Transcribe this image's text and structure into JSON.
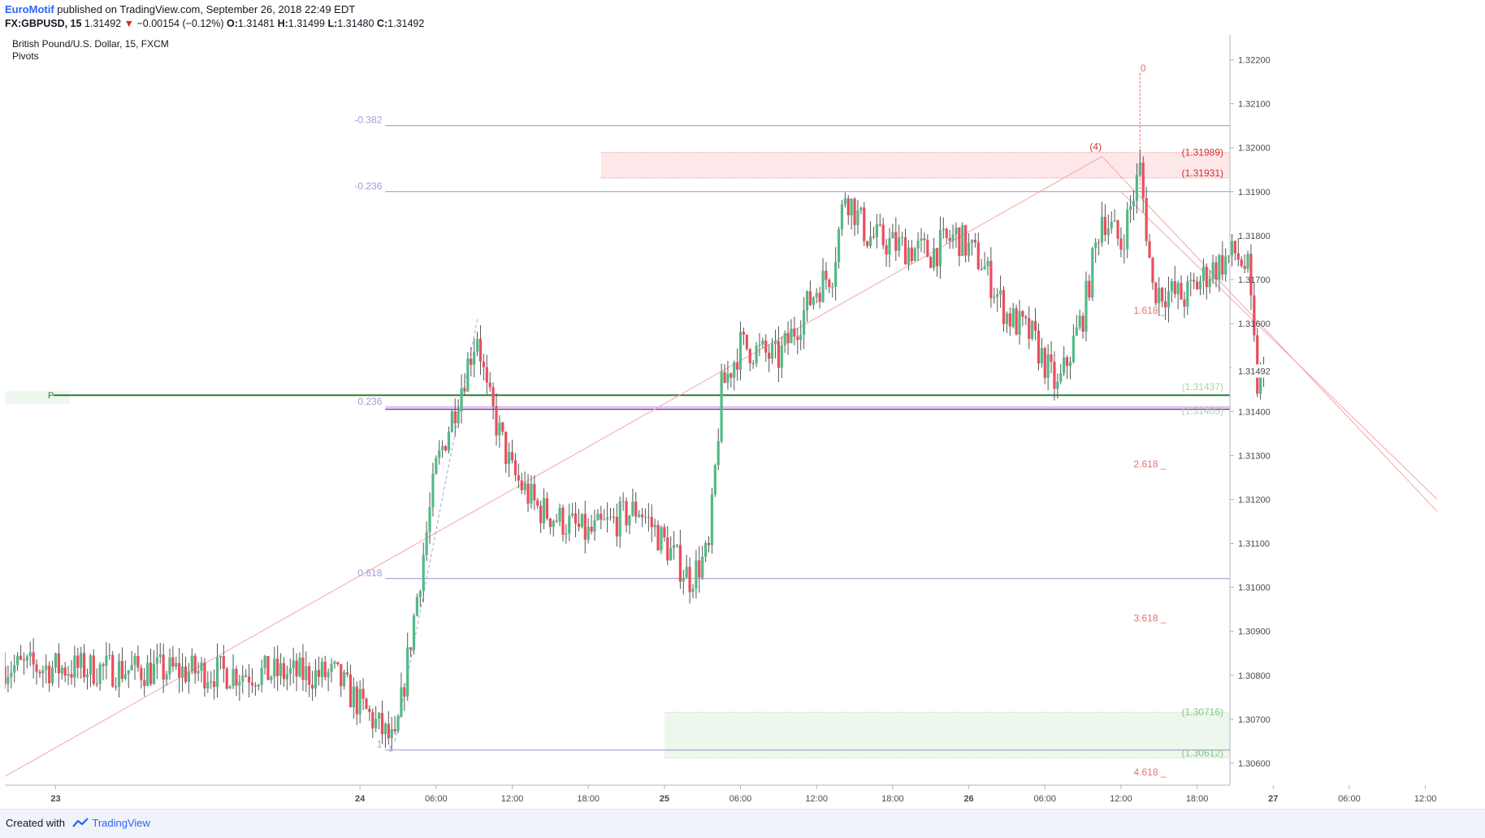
{
  "header": {
    "author": "EuroMotif",
    "published_text": "published on TradingView.com, September 26, 2018 22:49 EDT",
    "symbol": "FX:GBPUSD, 15",
    "last": "1.31492",
    "change_arrow": "▼",
    "change": "−0.00154 (−0.12%)",
    "o_label": "O:",
    "o_value": "1.31481",
    "h_label": "H:",
    "h_value": "1.31499",
    "l_label": "L:",
    "l_value": "1.31480",
    "c_label": "C:",
    "c_value": "1.31492"
  },
  "legend": {
    "title": "British Pound/U.S. Dollar, 15, FXCM",
    "indicator": "Pivots"
  },
  "footer": {
    "created_with": "Created with",
    "brand": "TradingView"
  },
  "colors": {
    "up": "#53b987",
    "down": "#eb4d5c",
    "fib_line": "#9c8fd9",
    "fib_text": "#a79ad6",
    "pivot": "#2e7d32",
    "ext_text": "#e57373",
    "red_zone": "#fde7e9",
    "green_zone": "#edf7ee"
  },
  "chart_data": {
    "type": "candlestick",
    "symbol": "GBPUSD",
    "timeframe": "15",
    "y_axis": {
      "ticks": [
        "1.32200",
        "1.32100",
        "1.32000",
        "1.31900",
        "1.31800",
        "1.31700",
        "1.31600",
        "1.31500",
        "1.31400",
        "1.31300",
        "1.31200",
        "1.31100",
        "1.31000",
        "1.30900",
        "1.30800",
        "1.30700",
        "1.30600"
      ]
    },
    "x_axis": {
      "ticks": [
        "23",
        "24",
        "06:00",
        "12:00",
        "18:00",
        "25",
        "06:00",
        "12:00",
        "18:00",
        "26",
        "06:00",
        "12:00",
        "18:00",
        "27",
        "06:00",
        "12:00"
      ]
    },
    "current_price_label": "1.31492",
    "candles_anchors": [
      {
        "t": "22 20:00",
        "close": 1.3082
      },
      {
        "t": "23 22:00",
        "close": 1.308
      },
      {
        "t": "24 02:45",
        "close": 1.3064
      },
      {
        "t": "24 06:00",
        "close": 1.3127
      },
      {
        "t": "24 09:15",
        "close": 1.3158
      },
      {
        "t": "24 10:00",
        "close": 1.3144
      },
      {
        "t": "24 12:00",
        "close": 1.3126
      },
      {
        "t": "24 14:00",
        "close": 1.3118
      },
      {
        "t": "24 18:00",
        "close": 1.3112
      },
      {
        "t": "24 22:00",
        "close": 1.3118
      },
      {
        "t": "25 02:00",
        "close": 1.3102
      },
      {
        "t": "25 03:30",
        "close": 1.3108
      },
      {
        "t": "25 04:30",
        "close": 1.3145
      },
      {
        "t": "25 06:00",
        "close": 1.3155
      },
      {
        "t": "25 09:00",
        "close": 1.3152
      },
      {
        "t": "25 12:00",
        "close": 1.3168
      },
      {
        "t": "25 13:15",
        "close": 1.3172
      },
      {
        "t": "25 14:15",
        "close": 1.319
      },
      {
        "t": "25 16:00",
        "close": 1.318
      },
      {
        "t": "25 18:00",
        "close": 1.3178
      },
      {
        "t": "25 21:00",
        "close": 1.3176
      },
      {
        "t": "25 23:00",
        "close": 1.318
      },
      {
        "t": "26 01:00",
        "close": 1.3174
      },
      {
        "t": "26 03:00",
        "close": 1.3162
      },
      {
        "t": "26 05:00",
        "close": 1.3157
      },
      {
        "t": "26 07:00",
        "close": 1.3145
      },
      {
        "t": "26 09:00",
        "close": 1.3162
      },
      {
        "t": "26 10:30",
        "close": 1.3185
      },
      {
        "t": "26 12:00",
        "close": 1.3178
      },
      {
        "t": "26 13:30",
        "close": 1.3195
      },
      {
        "t": "26 14:30",
        "close": 1.3168
      },
      {
        "t": "26 17:00",
        "close": 1.3166
      },
      {
        "t": "26 19:00",
        "close": 1.3172
      },
      {
        "t": "26 21:00",
        "close": 1.3176
      },
      {
        "t": "26 22:00",
        "close": 1.3172
      },
      {
        "t": "26 22:45",
        "close": 1.3146
      },
      {
        "t": "26 23:30",
        "close": 1.31492
      }
    ],
    "fibonacci_retracement": [
      {
        "level": "-0.382",
        "price": 1.3205
      },
      {
        "level": "-0.236",
        "price": 1.319
      },
      {
        "level": "0.236",
        "price": 1.3141
      },
      {
        "level": "0.618",
        "price": 1.3102
      },
      {
        "level": "1",
        "price": 1.3063
      }
    ],
    "pivot": {
      "label": "P",
      "price": 1.31437
    },
    "extension_levels": [
      {
        "label": "0",
        "price": 1.3217
      },
      {
        "label": "1.618",
        "price": 1.3163
      },
      {
        "label": "2.618",
        "price": 1.3128
      },
      {
        "label": "3.618",
        "price": 1.3093
      },
      {
        "label": "4.618",
        "price": 1.3058
      }
    ],
    "wave_label": "(4)",
    "zones": [
      {
        "name": "resistance",
        "from": "24 19:00",
        "top": 1.31989,
        "bottom": 1.31931,
        "top_label": "(1.31989)",
        "bottom_label": "(1.31931)"
      },
      {
        "name": "support",
        "from": "25 00:00",
        "top": 1.30716,
        "bottom": 1.30612,
        "top_label": "(1.30716)",
        "bottom_label": "(1.30612)"
      }
    ],
    "right_labels": [
      {
        "text": "(1.31437)",
        "price": 1.31437
      },
      {
        "text": "(1.31405)",
        "price": 1.31405
      }
    ],
    "trendlines": [
      {
        "from": {
          "t": "22 20:00",
          "price": 1.3057
        },
        "to": {
          "t": "26 10:30",
          "price": 1.3198
        }
      },
      {
        "from": {
          "t": "26 10:30",
          "price": 1.3198
        },
        "to": {
          "t": "27 14:00",
          "price": 1.3114
        }
      },
      {
        "from": {
          "t": "24 02:45",
          "price": 1.3065
        },
        "to": {
          "t": "24 09:15",
          "price": 1.3161
        }
      }
    ]
  }
}
